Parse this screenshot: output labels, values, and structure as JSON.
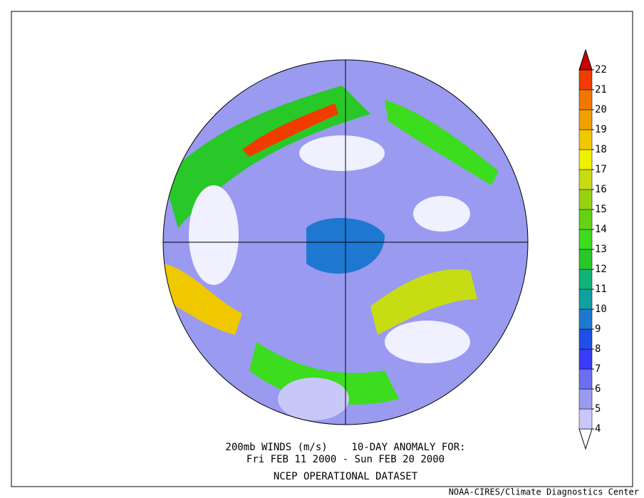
{
  "map": {
    "title": "200mb WINDS (m/s)    10-DAY ANOMALY FOR:",
    "date_range": "Fri FEB 11 2000 - Sun FEB 20 2000",
    "dataset": "NCEP OPERATIONAL DATASET"
  },
  "colorbar": {
    "levels": [
      4,
      5,
      6,
      7,
      8,
      9,
      10,
      11,
      12,
      13,
      14,
      15,
      16,
      17,
      18,
      19,
      20,
      21,
      22
    ],
    "colors": [
      "#ffffff",
      "#c8c8f8",
      "#9a9af0",
      "#6e6ef0",
      "#3a3af8",
      "#1e50e6",
      "#1e78d2",
      "#10a0a0",
      "#10b478",
      "#28c828",
      "#3cdc1e",
      "#64d214",
      "#96d214",
      "#c8dc14",
      "#f0f000",
      "#f0c800",
      "#f0a000",
      "#f07800",
      "#f03c00",
      "#c80000"
    ]
  },
  "credit": "NOAA-CIRES/Climate Diagnostics Center"
}
